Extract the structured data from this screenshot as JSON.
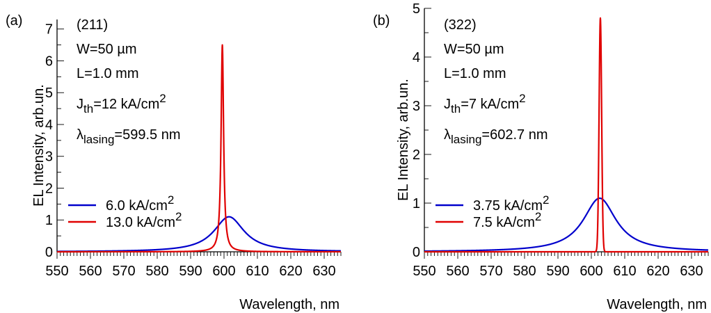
{
  "chart_data": [
    {
      "type": "line",
      "panel_label": "(a)",
      "xlabel": "Wavelength, nm",
      "ylabel": "EL Intensity, arb.un.",
      "xlim": [
        550,
        635
      ],
      "ylim": [
        0,
        7.3
      ],
      "x_ticks": [
        550,
        560,
        570,
        580,
        590,
        600,
        610,
        620,
        630
      ],
      "y_ticks": [
        0,
        1,
        2,
        3,
        4,
        5,
        6,
        7
      ],
      "x_tick_labels": [
        "550",
        "560",
        "570",
        "580",
        "590",
        "600",
        "610",
        "620",
        "630"
      ],
      "y_tick_labels": [
        "0",
        "1",
        "2",
        "3",
        "4",
        "5",
        "6",
        "7"
      ],
      "annotations": {
        "sample": "(211)",
        "width": "W=50 µm",
        "length": "L=1.0 mm",
        "jth_symbol": "J",
        "jth_sub": "th",
        "jth_value": "=12 kA/cm",
        "jth_sup": "2",
        "lambda_symbol": "λ",
        "lambda_sub": "lasing",
        "lambda_value": "=599.5 nm"
      },
      "legend_placement": "center-left",
      "series": [
        {
          "name": "6.0 kA/cm",
          "name_sup": "2",
          "color": "#0000cc",
          "shape": "lorentz",
          "center": 601.5,
          "peak": 1.1,
          "hwhm": 5.5
        },
        {
          "name": "13.0 kA/cm",
          "name_sup": "2",
          "color": "#e00000",
          "shape": "lorentz",
          "center": 599.5,
          "peak": 6.5,
          "hwhm": 0.45
        }
      ]
    },
    {
      "type": "line",
      "panel_label": "(b)",
      "xlabel": "Wavelength, nm",
      "ylabel": "EL Intensity, arb.un.",
      "xlim": [
        550,
        635
      ],
      "ylim": [
        0,
        5
      ],
      "x_ticks": [
        550,
        560,
        570,
        580,
        590,
        600,
        610,
        620,
        630
      ],
      "y_ticks": [
        0,
        1,
        2,
        3,
        4,
        5
      ],
      "x_tick_labels": [
        "550",
        "560",
        "570",
        "580",
        "590",
        "600",
        "610",
        "620",
        "630"
      ],
      "y_tick_labels": [
        "0",
        "1",
        "2",
        "3",
        "4",
        "5"
      ],
      "annotations": {
        "sample": "(322)",
        "width": "W=50 µm",
        "length": "L=1.0 mm",
        "jth_symbol": "J",
        "jth_sub": "th",
        "jth_value": "=7 kA/cm",
        "jth_sup": "2",
        "lambda_symbol": "λ",
        "lambda_sub": "lasing",
        "lambda_value": "=602.7 nm"
      },
      "legend_placement": "center-left",
      "series": [
        {
          "name": "3.75 kA/cm",
          "name_sup": "2",
          "color": "#0000cc",
          "shape": "lorentz",
          "center": 602.5,
          "peak": 1.1,
          "hwhm": 6.0
        },
        {
          "name": "7.5 kA/cm",
          "name_sup": "2",
          "color": "#e00000",
          "shape": "gauss",
          "center": 602.7,
          "peak": 4.8,
          "sigma": 0.38
        }
      ]
    }
  ]
}
